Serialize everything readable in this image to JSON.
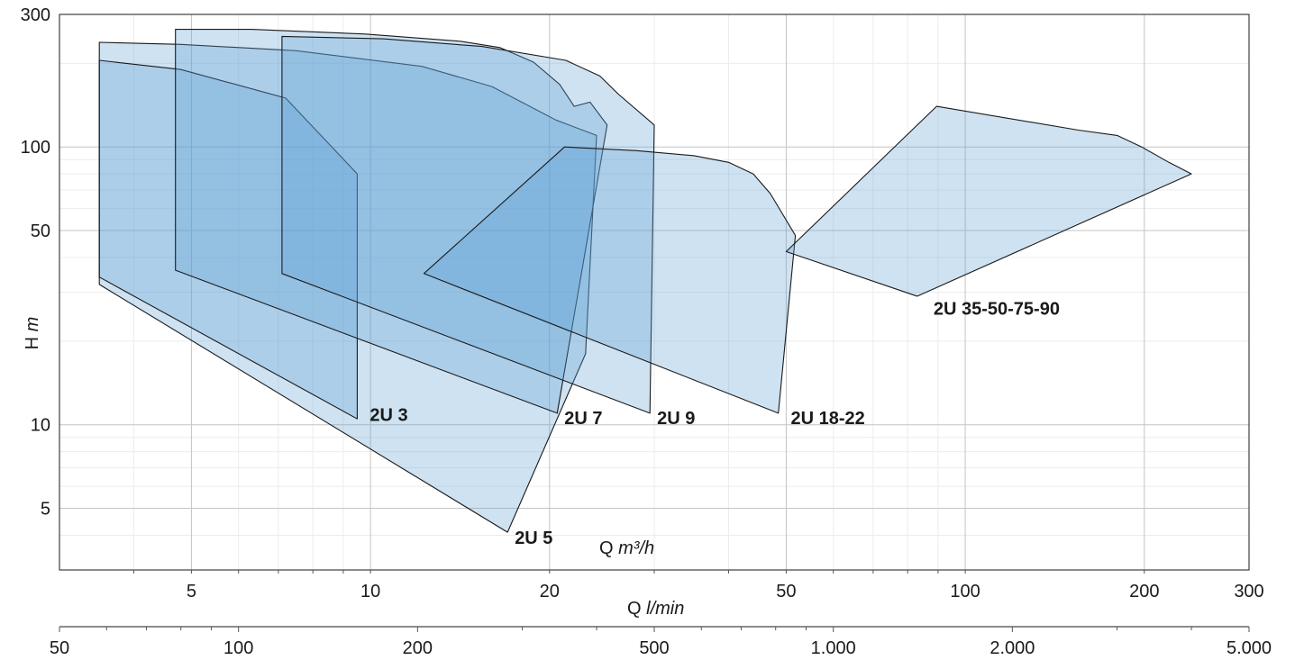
{
  "chart_data": {
    "type": "area",
    "x_scale": "log",
    "y_scale": "log",
    "xlabel_primary": "Q",
    "xlabel_primary_unit": "m³/h",
    "xlabel_secondary": "Q",
    "xlabel_secondary_unit": "l/min",
    "ylabel": "H",
    "ylabel_unit": "m",
    "xlim": [
      3,
      300
    ],
    "ylim": [
      3,
      300
    ],
    "x_ticks": [
      5,
      10,
      20,
      50,
      100,
      200,
      300
    ],
    "x_tick_labels": [
      "5",
      "10",
      "20",
      "50",
      "100",
      "200",
      "300"
    ],
    "y_ticks": [
      5,
      10,
      50,
      100,
      300
    ],
    "y_tick_labels": [
      "5",
      "10",
      "50",
      "100",
      "300"
    ],
    "secondary_x_ticks": [
      50,
      100,
      200,
      500,
      1000,
      2000,
      5000
    ],
    "secondary_x_tick_labels": [
      "50",
      "100",
      "200",
      "500",
      "1.000",
      "2.000",
      "5.000"
    ],
    "secondary_xlim": [
      50,
      5000
    ],
    "grid": true,
    "fill_color": "#5da0d4",
    "series": [
      {
        "name": "2U 5",
        "label_at": [
          17,
          3.9
        ],
        "points": [
          [
            3.5,
            34
          ],
          [
            3.5,
            238
          ],
          [
            4.8,
            234
          ],
          [
            7.5,
            222
          ],
          [
            12.2,
            195
          ],
          [
            16,
            165
          ],
          [
            20.5,
            125
          ],
          [
            24,
            110
          ],
          [
            23,
            18
          ],
          [
            17,
            4.1
          ],
          [
            3.5,
            32
          ]
        ]
      },
      {
        "name": "2U 3",
        "label_at": [
          9.7,
          10.8
        ],
        "points": [
          [
            3.5,
            34
          ],
          [
            3.5,
            205
          ],
          [
            4.8,
            190
          ],
          [
            7.2,
            150
          ],
          [
            9.5,
            80
          ],
          [
            9.5,
            10.5
          ],
          [
            3.5,
            34
          ]
        ]
      },
      {
        "name": "2U 7",
        "label_at": [
          20.6,
          10.5
        ],
        "points": [
          [
            4.7,
            36
          ],
          [
            4.7,
            265
          ],
          [
            6.3,
            265
          ],
          [
            9.8,
            255
          ],
          [
            14.2,
            240
          ],
          [
            16.5,
            228
          ],
          [
            18.8,
            202
          ],
          [
            20.8,
            168
          ],
          [
            22,
            140
          ],
          [
            23.4,
            145
          ],
          [
            25,
            120
          ],
          [
            20.6,
            11
          ],
          [
            4.7,
            36
          ]
        ]
      },
      {
        "name": "2U 9",
        "label_at": [
          29.5,
          10.5
        ],
        "points": [
          [
            7.1,
            35
          ],
          [
            7.1,
            250
          ],
          [
            10.5,
            245
          ],
          [
            15.4,
            230
          ],
          [
            21.3,
            205
          ],
          [
            24.3,
            180
          ],
          [
            26.1,
            155
          ],
          [
            30,
            120
          ],
          [
            29.5,
            11
          ],
          [
            7.1,
            35
          ]
        ]
      },
      {
        "name": "2U 18-22",
        "label_at": [
          49.5,
          10.5
        ],
        "points": [
          [
            12.3,
            35
          ],
          [
            21.2,
            100
          ],
          [
            28,
            97
          ],
          [
            35,
            93
          ],
          [
            40,
            88
          ],
          [
            44,
            80
          ],
          [
            47,
            68
          ],
          [
            51.8,
            48
          ],
          [
            48.5,
            11
          ],
          [
            12.3,
            35
          ]
        ]
      },
      {
        "name": "2U 35-50-75-90",
        "label_at": [
          86,
          26
        ],
        "points": [
          [
            50,
            42
          ],
          [
            89.5,
            140
          ],
          [
            155,
            115
          ],
          [
            180,
            110
          ],
          [
            198,
            100
          ],
          [
            220,
            88
          ],
          [
            240,
            80
          ],
          [
            83,
            29
          ],
          [
            50,
            42
          ]
        ]
      }
    ]
  }
}
